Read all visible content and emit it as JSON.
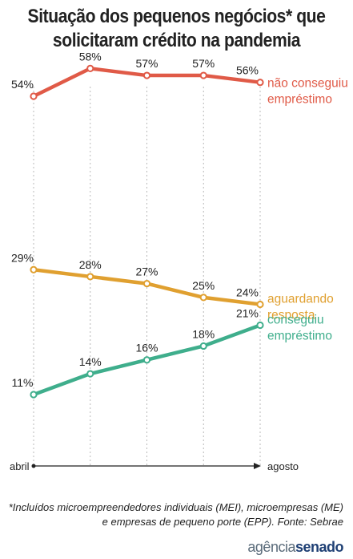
{
  "title_line1": "Situação dos pequenos negócios* que",
  "title_line2": "solicitaram crédito na pandemia",
  "chart_data": {
    "type": "line",
    "title": "Situação dos pequenos negócios* que solicitaram crédito na pandemia",
    "x": [
      "abril",
      "",
      "",
      "",
      "agosto"
    ],
    "x_start_label": "abril",
    "x_end_label": "agosto",
    "ylim": [
      0,
      60
    ],
    "grid": "vertical dashed",
    "series": [
      {
        "name": "não conseguiu empréstimo",
        "name_lines": [
          "não conseguiu",
          "empréstimo"
        ],
        "color": "#e05a47",
        "values": [
          54,
          58,
          57,
          57,
          56
        ],
        "labels": [
          "54%",
          "58%",
          "57%",
          "57%",
          "56%"
        ]
      },
      {
        "name": "aguardando resposta",
        "name_lines": [
          "aguardando",
          "resposta"
        ],
        "color": "#e0a030",
        "values": [
          29,
          28,
          27,
          25,
          24
        ],
        "labels": [
          "29%",
          "28%",
          "27%",
          "25%",
          "24%"
        ]
      },
      {
        "name": "conseguiu empréstimo",
        "name_lines": [
          "conseguiu",
          "empréstimo"
        ],
        "color": "#3fae8c",
        "values": [
          11,
          14,
          16,
          18,
          21
        ],
        "labels": [
          "11%",
          "14%",
          "16%",
          "18%",
          "21%"
        ]
      }
    ]
  },
  "footnote_line1": "*Incluídos microempreendedores individuais (MEI), microempresas (ME)",
  "footnote_line2": "e empresas de pequeno porte (EPP). Fonte: Sebrae",
  "logo_part1": "agência",
  "logo_part2": "senado"
}
